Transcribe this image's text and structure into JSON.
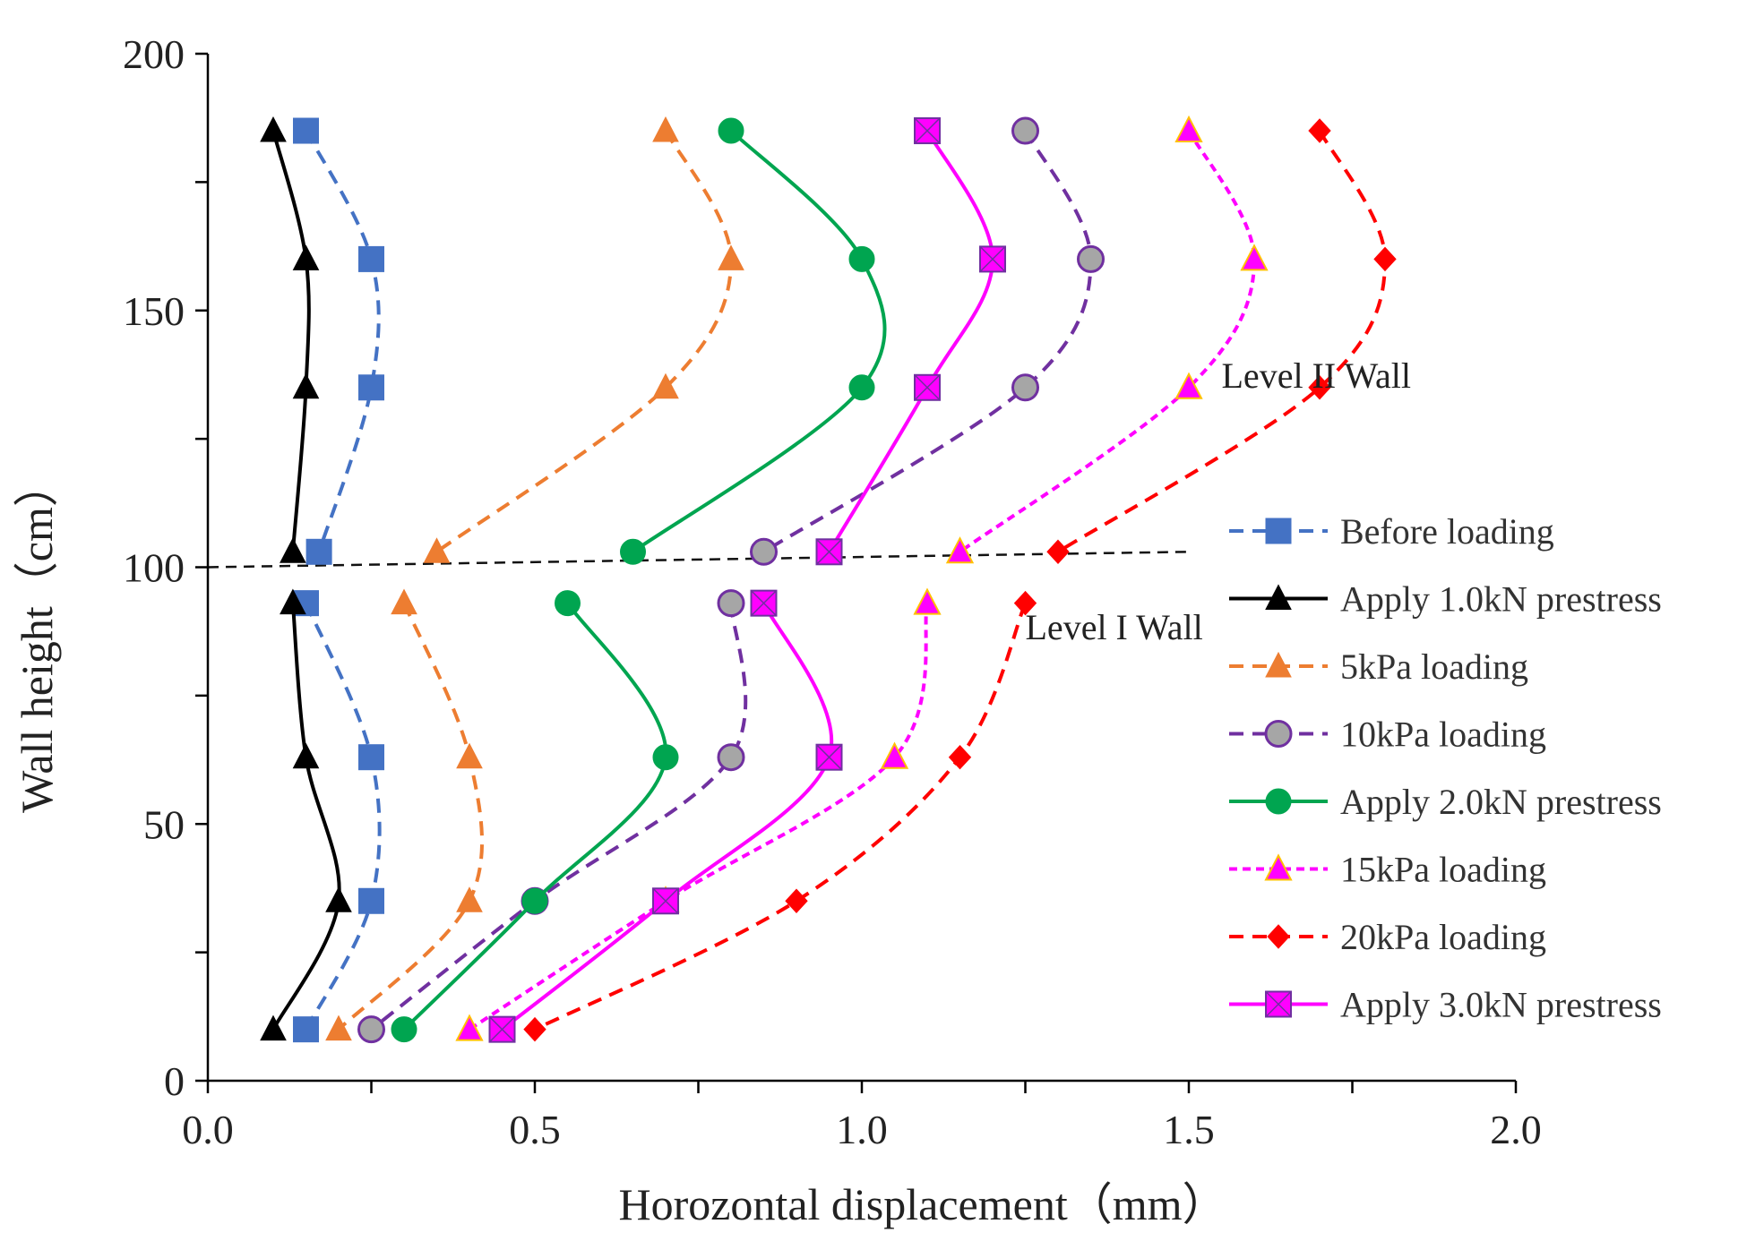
{
  "chart_data": {
    "type": "line",
    "xlabel": "Horozontal  displacement（mm）",
    "ylabel": "Wall height（cm）",
    "xlim": [
      0,
      2.0
    ],
    "ylim": [
      0,
      200
    ],
    "x_ticks": [
      "0.0",
      "0.5",
      "1.0",
      "1.5",
      "2.0"
    ],
    "y_ticks": [
      "0",
      "50",
      "100",
      "150",
      "200"
    ],
    "grid": false,
    "legend_position": "right",
    "annotations": [
      {
        "text": "Level II Wall",
        "x": 1.55,
        "y": 135
      },
      {
        "text": "Level I Wall",
        "x": 1.25,
        "y": 86
      }
    ],
    "divider": {
      "style": "dashed",
      "color": "#111111",
      "points": [
        [
          0.0,
          100
        ],
        [
          1.5,
          103
        ]
      ]
    },
    "series": [
      {
        "name": "Before loading",
        "color": "#4472C4",
        "line": "dashed",
        "marker": "square",
        "upper": {
          "x": [
            0.15,
            0.25,
            0.25,
            0.17
          ],
          "y": [
            185,
            160,
            135,
            103
          ]
        },
        "lower": {
          "x": [
            0.15,
            0.25,
            0.25,
            0.15
          ],
          "y": [
            93,
            63,
            35,
            10
          ]
        }
      },
      {
        "name": "Apply 1.0kN prestress",
        "color": "#000000",
        "line": "solid",
        "marker": "triangle",
        "upper": {
          "x": [
            0.1,
            0.15,
            0.15,
            0.13
          ],
          "y": [
            185,
            160,
            135,
            103
          ]
        },
        "lower": {
          "x": [
            0.13,
            0.15,
            0.2,
            0.1
          ],
          "y": [
            93,
            63,
            35,
            10
          ]
        }
      },
      {
        "name": "5kPa loading",
        "color": "#ED7D31",
        "line": "dashed",
        "marker": "triangle",
        "upper": {
          "x": [
            0.7,
            0.8,
            0.7,
            0.35
          ],
          "y": [
            185,
            160,
            135,
            103
          ]
        },
        "lower": {
          "x": [
            0.3,
            0.4,
            0.4,
            0.2
          ],
          "y": [
            93,
            63,
            35,
            10
          ]
        }
      },
      {
        "name": "10kPa loading",
        "color": "#7030A0",
        "line": "dashed",
        "marker": "circle-gray",
        "upper": {
          "x": [
            1.25,
            1.35,
            1.25,
            0.85
          ],
          "y": [
            185,
            160,
            135,
            103
          ]
        },
        "lower": {
          "x": [
            0.8,
            0.8,
            0.5,
            0.25
          ],
          "y": [
            93,
            63,
            35,
            10
          ]
        }
      },
      {
        "name": "Apply 2.0kN prestress",
        "color": "#00A550",
        "line": "solid",
        "marker": "circle",
        "upper": {
          "x": [
            0.8,
            1.0,
            1.0,
            0.65
          ],
          "y": [
            185,
            160,
            135,
            103
          ]
        },
        "lower": {
          "x": [
            0.55,
            0.7,
            0.5,
            0.3
          ],
          "y": [
            93,
            63,
            35,
            10
          ]
        }
      },
      {
        "name": "15kPa loading",
        "color": "#FF00FF",
        "line": "dotted",
        "marker": "triangle-yellow",
        "upper": {
          "x": [
            1.5,
            1.6,
            1.5,
            1.15
          ],
          "y": [
            185,
            160,
            135,
            103
          ]
        },
        "lower": {
          "x": [
            1.1,
            1.05,
            0.7,
            0.4
          ],
          "y": [
            93,
            63,
            35,
            10
          ]
        }
      },
      {
        "name": "20kPa loading",
        "color": "#FF0000",
        "line": "dashed",
        "marker": "diamond",
        "upper": {
          "x": [
            1.7,
            1.8,
            1.7,
            1.3
          ],
          "y": [
            185,
            160,
            135,
            103
          ]
        },
        "lower": {
          "x": [
            1.25,
            1.15,
            0.9,
            0.5
          ],
          "y": [
            93,
            63,
            35,
            10
          ]
        }
      },
      {
        "name": "Apply 3.0kN prestress",
        "color": "#FF00FF",
        "line": "solid",
        "marker": "square-cross",
        "upper": {
          "x": [
            1.1,
            1.2,
            1.1,
            0.95
          ],
          "y": [
            185,
            160,
            135,
            103
          ]
        },
        "lower": {
          "x": [
            0.85,
            0.95,
            0.7,
            0.45
          ],
          "y": [
            93,
            63,
            35,
            10
          ]
        }
      }
    ]
  }
}
